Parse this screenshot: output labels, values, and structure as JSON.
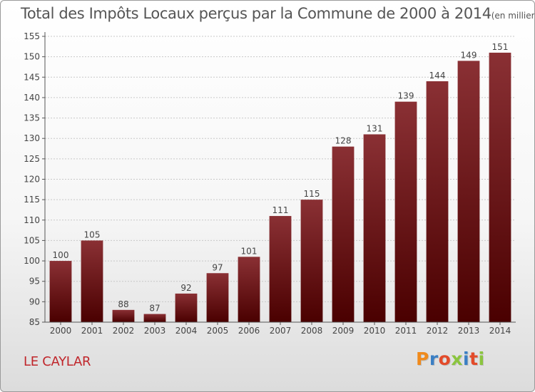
{
  "header": {
    "title": "Total des Impôts Locaux perçus par la Commune de 2000 à 2014",
    "unit": "(en milliers d'€)"
  },
  "footer": {
    "commune": "LE CAYLAR",
    "logo": "Proxiti",
    "logo_letter_colors": [
      "#f08a1c",
      "#3b7fc4",
      "#e34b2a",
      "#8bc53f",
      "#3b7fc4",
      "#e34b2a",
      "#8bc53f"
    ]
  },
  "colors": {
    "bar_top": "#8a3034",
    "bar_bottom": "#4a0000",
    "title": "#555555",
    "commune": "#c0262b"
  },
  "chart_data": {
    "type": "bar",
    "title": "Total des Impôts Locaux perçus par la Commune de 2000 à 2014",
    "categories": [
      "2000",
      "2001",
      "2002",
      "2003",
      "2004",
      "2005",
      "2006",
      "2007",
      "2008",
      "2009",
      "2010",
      "2011",
      "2012",
      "2013",
      "2014"
    ],
    "values": [
      100,
      105,
      88,
      87,
      92,
      97,
      101,
      111,
      115,
      128,
      131,
      139,
      144,
      149,
      151
    ],
    "ylim": [
      85,
      155
    ],
    "yticks": [
      85,
      90,
      95,
      100,
      105,
      110,
      115,
      120,
      125,
      130,
      135,
      140,
      145,
      150,
      155
    ],
    "grid": true,
    "data_labels": true,
    "xlabel": "",
    "ylabel": ""
  }
}
